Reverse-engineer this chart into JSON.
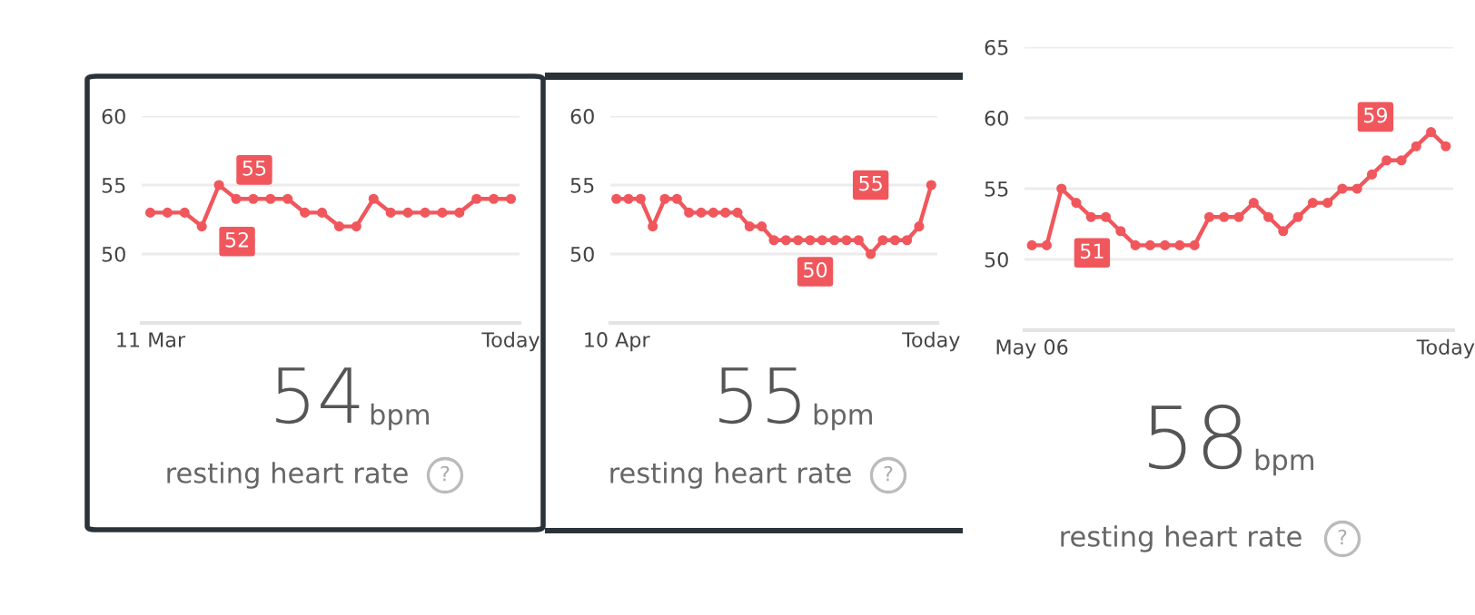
{
  "chart_data": [
    {
      "type": "line",
      "categories": [
        "11 Mar",
        null,
        null,
        null,
        null,
        null,
        null,
        null,
        null,
        null,
        null,
        null,
        null,
        null,
        null,
        null,
        null,
        null,
        null,
        null,
        null,
        "Today"
      ],
      "series": [
        {
          "color": "#f0575c",
          "values": [
            53,
            53,
            53,
            52,
            55,
            54,
            54,
            54,
            54,
            53,
            53,
            52,
            52,
            54,
            53,
            53,
            53,
            53,
            53,
            54,
            54,
            54
          ]
        }
      ],
      "ylim": [
        45,
        60
      ],
      "yticks": [
        50,
        55,
        60
      ],
      "grid": "y",
      "marker": "circle",
      "line_style": "solid",
      "annotations": [
        "55",
        "52",
        "54",
        "bpm",
        "resting heart rate",
        "?"
      ]
    },
    {
      "type": "line",
      "categories": [
        "10 Apr",
        null,
        null,
        null,
        null,
        null,
        null,
        null,
        null,
        null,
        null,
        null,
        null,
        null,
        null,
        null,
        null,
        null,
        null,
        null,
        null,
        null,
        null,
        null,
        null,
        null,
        "Today"
      ],
      "series": [
        {
          "color": "#f0575c",
          "values": [
            54,
            54,
            54,
            52,
            54,
            54,
            53,
            53,
            53,
            53,
            53,
            52,
            52,
            51,
            51,
            51,
            51,
            51,
            51,
            51,
            51,
            50,
            51,
            51,
            51,
            52,
            55
          ]
        }
      ],
      "ylim": [
        45,
        60
      ],
      "yticks": [
        50,
        55,
        60
      ],
      "grid": "y",
      "marker": "circle",
      "line_style": "solid",
      "annotations": [
        "50",
        "55",
        "55",
        "bpm",
        "resting heart rate",
        "?"
      ]
    },
    {
      "type": "line",
      "categories": [
        "May 06",
        null,
        null,
        null,
        null,
        null,
        null,
        null,
        null,
        null,
        null,
        null,
        null,
        null,
        null,
        null,
        null,
        null,
        null,
        null,
        null,
        null,
        null,
        null,
        null,
        null,
        null,
        null,
        "Today"
      ],
      "series": [
        {
          "color": "#f0575c",
          "values": [
            51,
            51,
            55,
            54,
            53,
            53,
            52,
            51,
            51,
            51,
            51,
            51,
            53,
            53,
            53,
            54,
            53,
            52,
            53,
            54,
            54,
            55,
            55,
            56,
            57,
            57,
            58,
            59,
            58
          ]
        }
      ],
      "ylim": [
        45,
        65
      ],
      "yticks": [
        50,
        55,
        60,
        65
      ],
      "grid": "y",
      "marker": "circle",
      "line_style": "solid",
      "annotations": [
        "51",
        "59",
        "58",
        "bpm",
        "resting heart rate",
        "?"
      ]
    }
  ]
}
